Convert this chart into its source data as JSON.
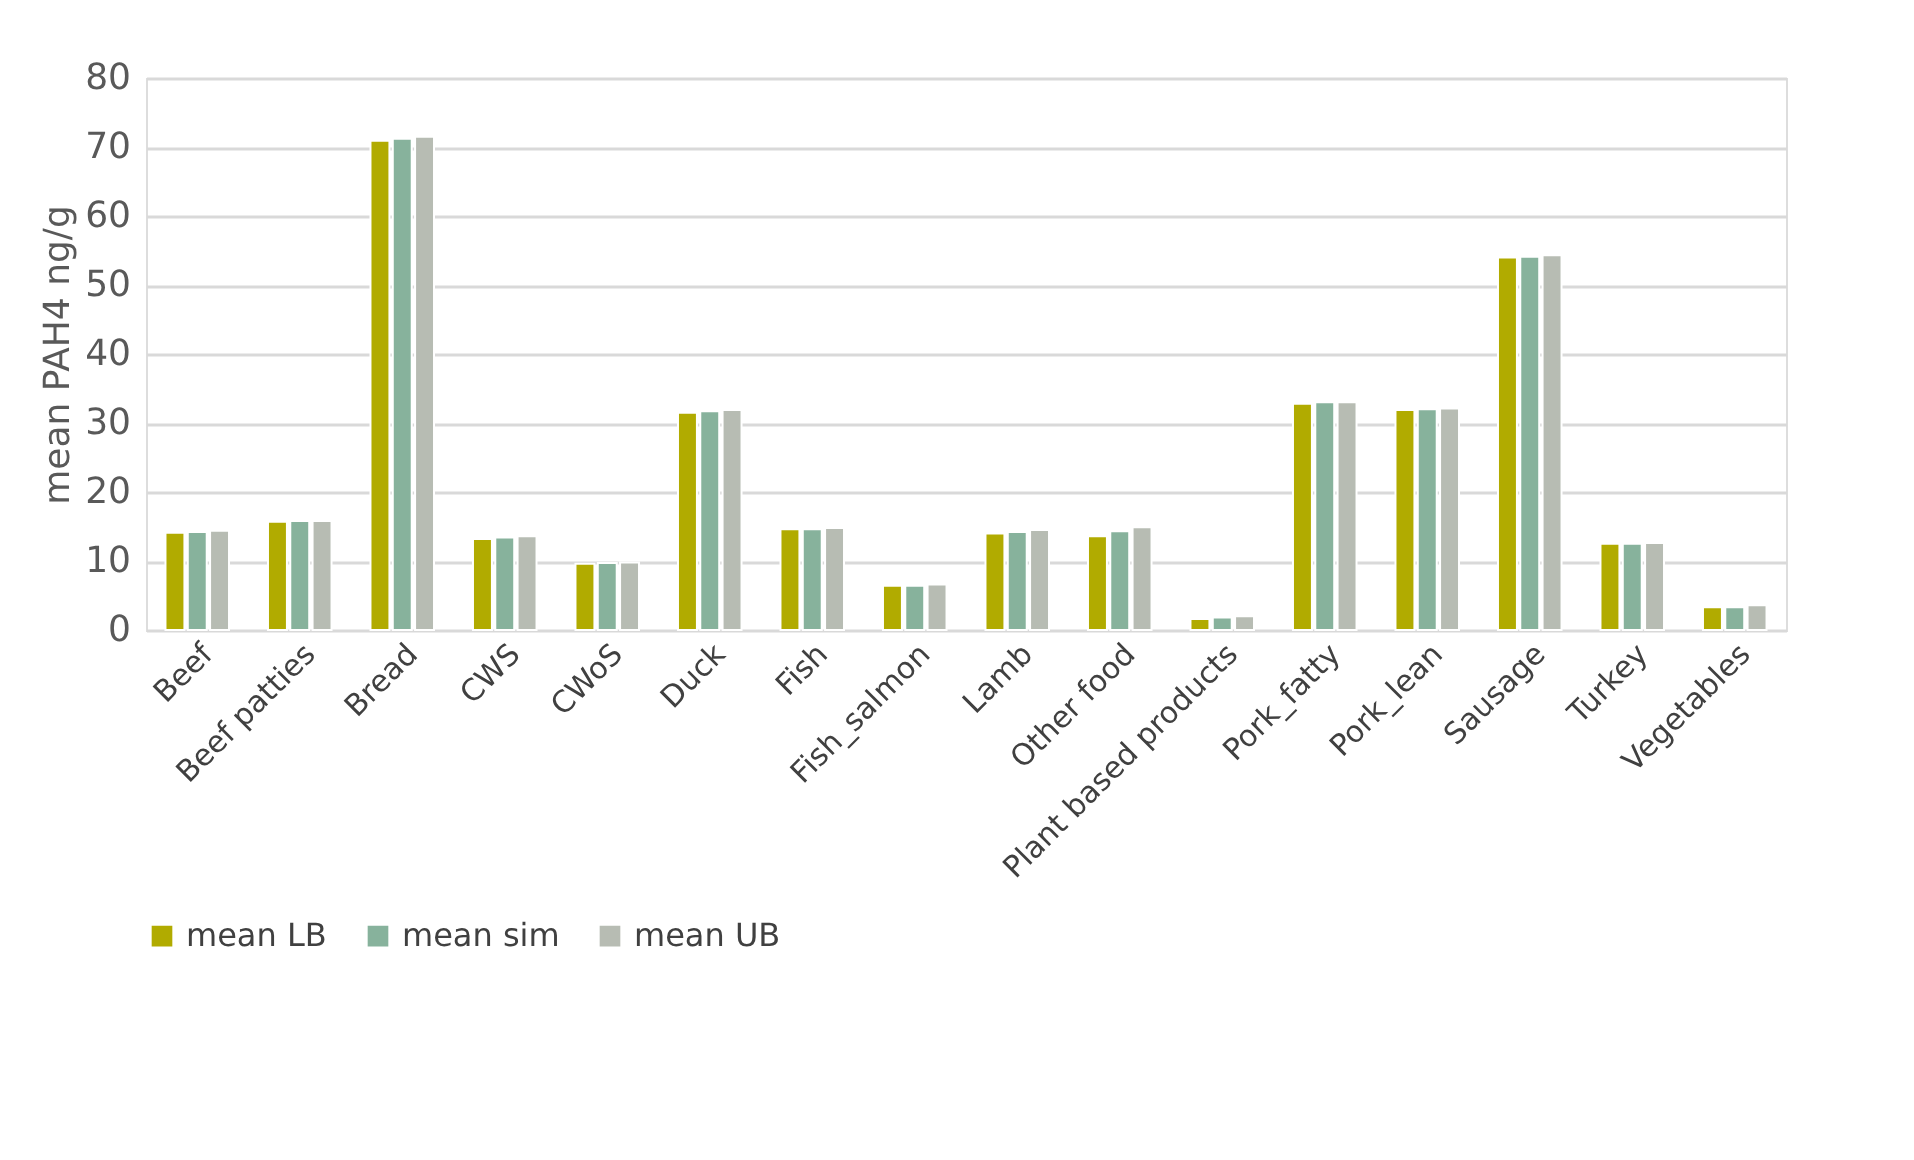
{
  "chart_data": {
    "type": "bar",
    "ylabel": "mean PAH4 ng/g",
    "categories": [
      "Beef",
      "Beef patties",
      "Bread",
      "CWS",
      "CWoS",
      "Duck",
      "Fish",
      "Fish_salmon",
      "Lamb",
      "Other food",
      "Plant based products",
      "Pork_fatty",
      "Pork_lean",
      "Sausage",
      "Turkey",
      "Vegetables"
    ],
    "series": [
      {
        "name": "mean LB",
        "color": "#b1ab00",
        "values": [
          14.1,
          15.7,
          70.9,
          13.2,
          9.6,
          31.5,
          14.6,
          6.4,
          14.0,
          13.6,
          1.6,
          32.8,
          31.9,
          54.0,
          12.5,
          3.3
        ]
      },
      {
        "name": "mean sim",
        "color": "#87b29c",
        "values": [
          14.2,
          15.8,
          71.2,
          13.4,
          9.7,
          31.7,
          14.6,
          6.4,
          14.2,
          14.3,
          1.8,
          33.0,
          32.0,
          54.1,
          12.5,
          3.3
        ]
      },
      {
        "name": "mean UB",
        "color": "#b7bcb3",
        "values": [
          14.4,
          15.8,
          71.5,
          13.6,
          9.8,
          31.9,
          14.8,
          6.6,
          14.5,
          14.9,
          2.0,
          33.0,
          32.1,
          54.3,
          12.6,
          3.6
        ]
      }
    ],
    "ylim": [
      0,
      80
    ],
    "yticks": [
      0,
      10,
      20,
      30,
      40,
      50,
      60,
      70,
      80
    ],
    "grid": "y",
    "legend": "bottom"
  }
}
